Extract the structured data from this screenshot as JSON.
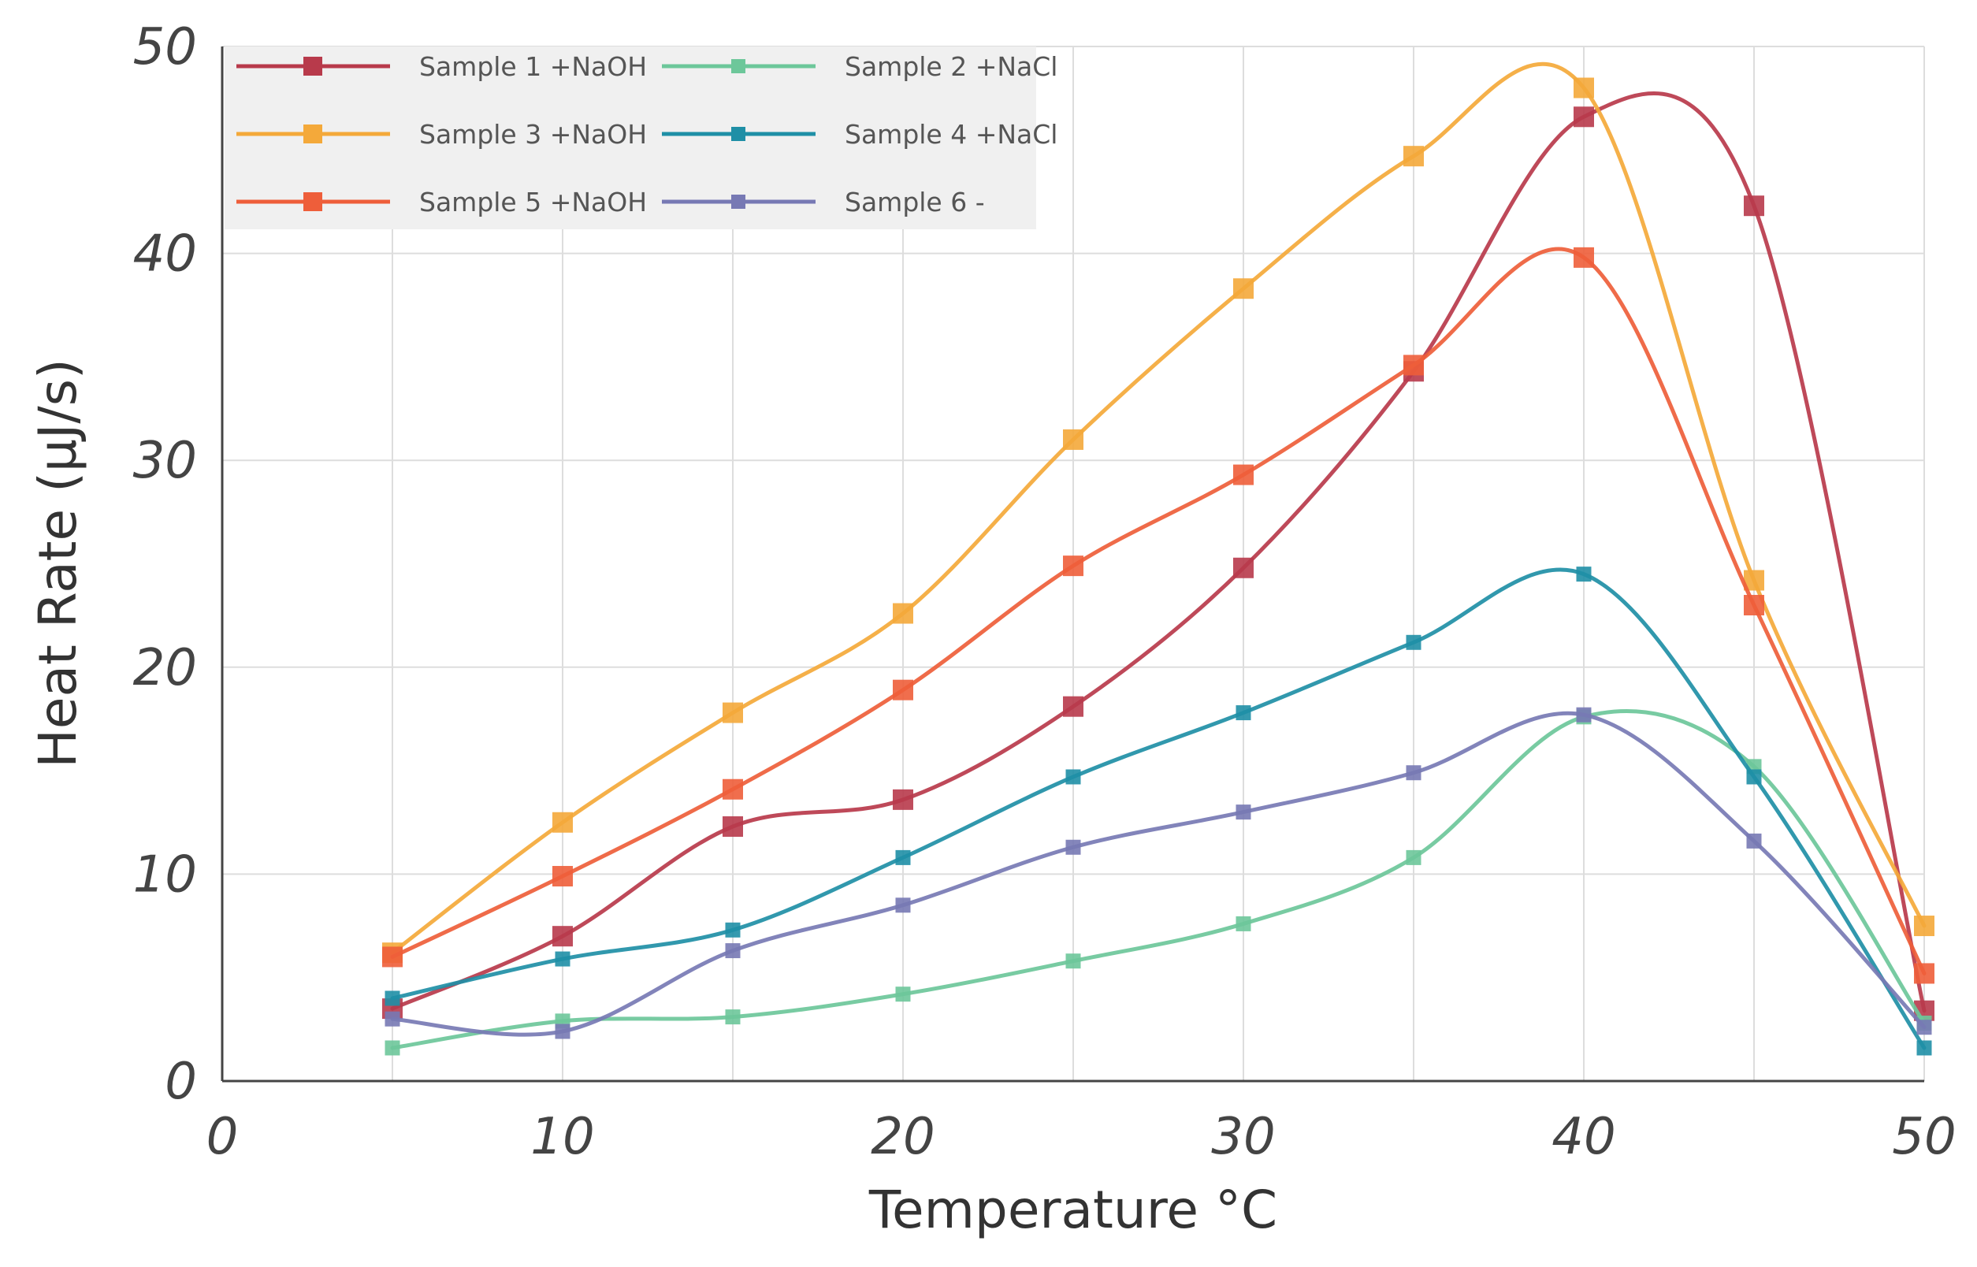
{
  "chart_data": {
    "type": "line",
    "xlabel": "Temperature °C",
    "ylabel": "Heat Rate (µJ/s)",
    "xlim": [
      0,
      50
    ],
    "ylim": [
      0,
      50
    ],
    "x_ticks": [
      "0",
      "10",
      "20",
      "30",
      "40",
      "50"
    ],
    "y_ticks": [
      "0",
      "10",
      "20",
      "30",
      "40",
      "50"
    ],
    "grid": true,
    "legend_position": "top-left",
    "x": [
      5,
      10,
      15,
      20,
      25,
      30,
      35,
      40,
      45,
      50
    ],
    "series": [
      {
        "name": "Sample 1 +NaOH",
        "color": "#b83a4b",
        "marker_size": "large",
        "values": [
          3.5,
          7.0,
          12.3,
          13.6,
          18.1,
          24.8,
          34.3,
          46.6,
          42.3,
          3.4
        ]
      },
      {
        "name": "Sample 2 +NaCl",
        "color": "#6dc79a",
        "marker_size": "small",
        "values": [
          1.6,
          2.9,
          3.1,
          4.2,
          5.8,
          7.6,
          10.8,
          17.6,
          15.2,
          2.8
        ]
      },
      {
        "name": "Sample 3 +NaOH",
        "color": "#f4a93a",
        "marker_size": "large",
        "values": [
          6.2,
          12.5,
          17.8,
          22.6,
          31.0,
          38.3,
          44.7,
          48.0,
          24.2,
          7.5
        ]
      },
      {
        "name": "Sample 4 +NaCl",
        "color": "#1f8fa6",
        "marker_size": "small",
        "values": [
          4.0,
          5.9,
          7.3,
          10.8,
          14.7,
          17.8,
          21.2,
          24.5,
          14.7,
          1.6
        ]
      },
      {
        "name": "Sample 5 +NaOH",
        "color": "#ee5e3a",
        "marker_size": "large",
        "values": [
          6.0,
          9.9,
          14.1,
          18.9,
          24.9,
          29.3,
          34.6,
          39.8,
          23.0,
          5.2
        ]
      },
      {
        "name": "Sample 6 -",
        "color": "#7779b4",
        "marker_size": "small",
        "values": [
          3.0,
          2.4,
          6.3,
          8.5,
          11.3,
          13.0,
          14.9,
          17.7,
          11.6,
          2.6
        ]
      }
    ]
  }
}
